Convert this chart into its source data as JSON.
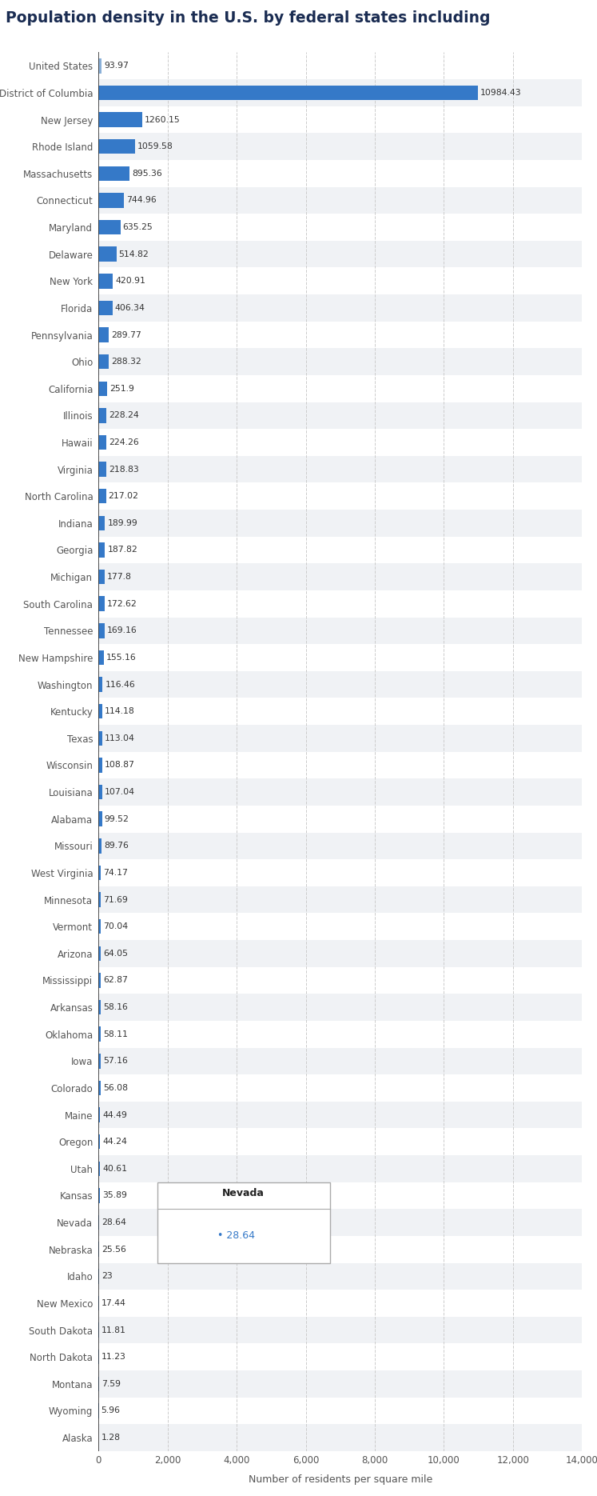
{
  "title": "Population density in the U.S. by federal states including",
  "xlabel": "Number of residents per square mile",
  "states": [
    "United States",
    "District of Columbia",
    "New Jersey",
    "Rhode Island",
    "Massachusetts",
    "Connecticut",
    "Maryland",
    "Delaware",
    "New York",
    "Florida",
    "Pennsylvania",
    "Ohio",
    "California",
    "Illinois",
    "Hawaii",
    "Virginia",
    "North Carolina",
    "Indiana",
    "Georgia",
    "Michigan",
    "South Carolina",
    "Tennessee",
    "New Hampshire",
    "Washington",
    "Kentucky",
    "Texas",
    "Wisconsin",
    "Louisiana",
    "Alabama",
    "Missouri",
    "West Virginia",
    "Minnesota",
    "Vermont",
    "Arizona",
    "Mississippi",
    "Arkansas",
    "Oklahoma",
    "Iowa",
    "Colorado",
    "Maine",
    "Oregon",
    "Utah",
    "Kansas",
    "Nevada",
    "Nebraska",
    "Idaho",
    "New Mexico",
    "South Dakota",
    "North Dakota",
    "Montana",
    "Wyoming",
    "Alaska"
  ],
  "values": [
    93.97,
    10984.43,
    1260.15,
    1059.58,
    895.36,
    744.96,
    635.25,
    514.82,
    420.91,
    406.34,
    289.77,
    288.32,
    251.9,
    228.24,
    224.26,
    218.83,
    217.02,
    189.99,
    187.82,
    177.8,
    172.62,
    169.16,
    155.16,
    116.46,
    114.18,
    113.04,
    108.87,
    107.04,
    99.52,
    89.76,
    74.17,
    71.69,
    70.04,
    64.05,
    62.87,
    58.16,
    58.11,
    57.16,
    56.08,
    44.49,
    44.24,
    40.61,
    35.89,
    28.64,
    25.56,
    23.0,
    17.44,
    11.81,
    11.23,
    7.59,
    5.96,
    1.28
  ],
  "bar_color_default": "#3579c8",
  "us_bar_color": "#8ab0d8",
  "row_color_odd": "#ffffff",
  "row_color_even": "#f0f2f5",
  "tooltip_state": "Nevada",
  "tooltip_value": "28.64",
  "bg_color": "#ffffff",
  "title_color": "#1a2c52",
  "label_color": "#555555",
  "value_color": "#333333",
  "axis_line_color": "#333333",
  "grid_color": "#cccccc",
  "xlim": [
    0,
    14000
  ],
  "xticks": [
    0,
    2000,
    4000,
    6000,
    8000,
    10000,
    12000,
    14000
  ]
}
